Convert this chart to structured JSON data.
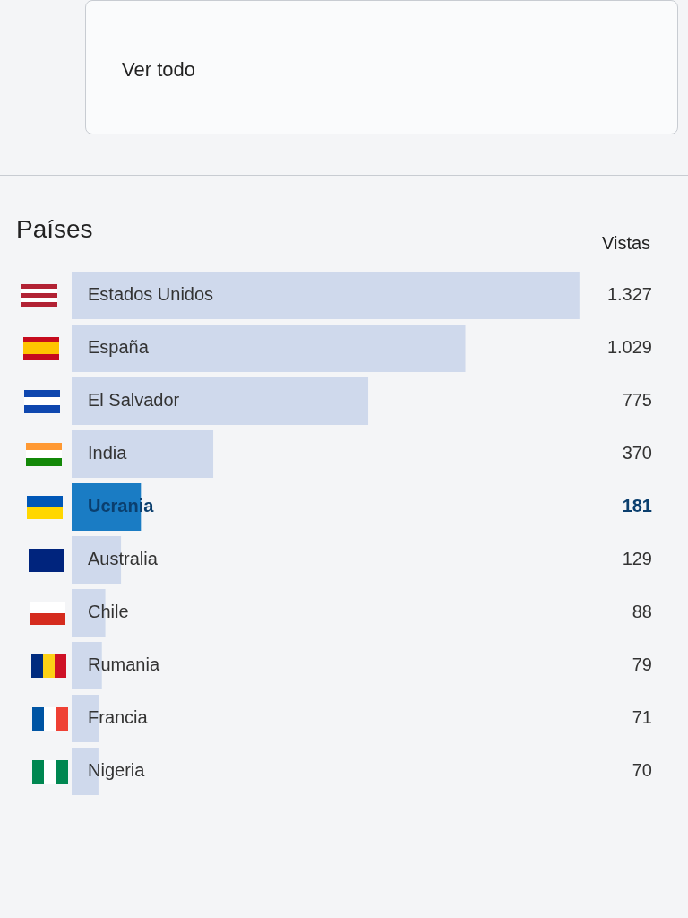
{
  "chart_data": {
    "type": "bar",
    "orientation": "horizontal",
    "title": "Países",
    "categories": [
      "Estados Unidos",
      "España",
      "El Salvador",
      "India",
      "Ucrania",
      "Australia",
      "Chile",
      "Rumania",
      "Francia",
      "Nigeria"
    ],
    "values": [
      1327,
      1029,
      775,
      370,
      181,
      129,
      88,
      79,
      71,
      70
    ],
    "value_labels": [
      "1.327",
      "1.029",
      "775",
      "370",
      "181",
      "129",
      "88",
      "79",
      "71",
      "70"
    ],
    "colors": [
      "#cfd9ec",
      "#cfd9ec",
      "#cfd9ec",
      "#cfd9ec",
      "#1a7cc4",
      "#cfd9ec",
      "#cfd9ec",
      "#cfd9ec",
      "#cfd9ec",
      "#cfd9ec"
    ],
    "legend": false,
    "annotations": [
      "Ver todo",
      "Vistas"
    ]
  }
}
